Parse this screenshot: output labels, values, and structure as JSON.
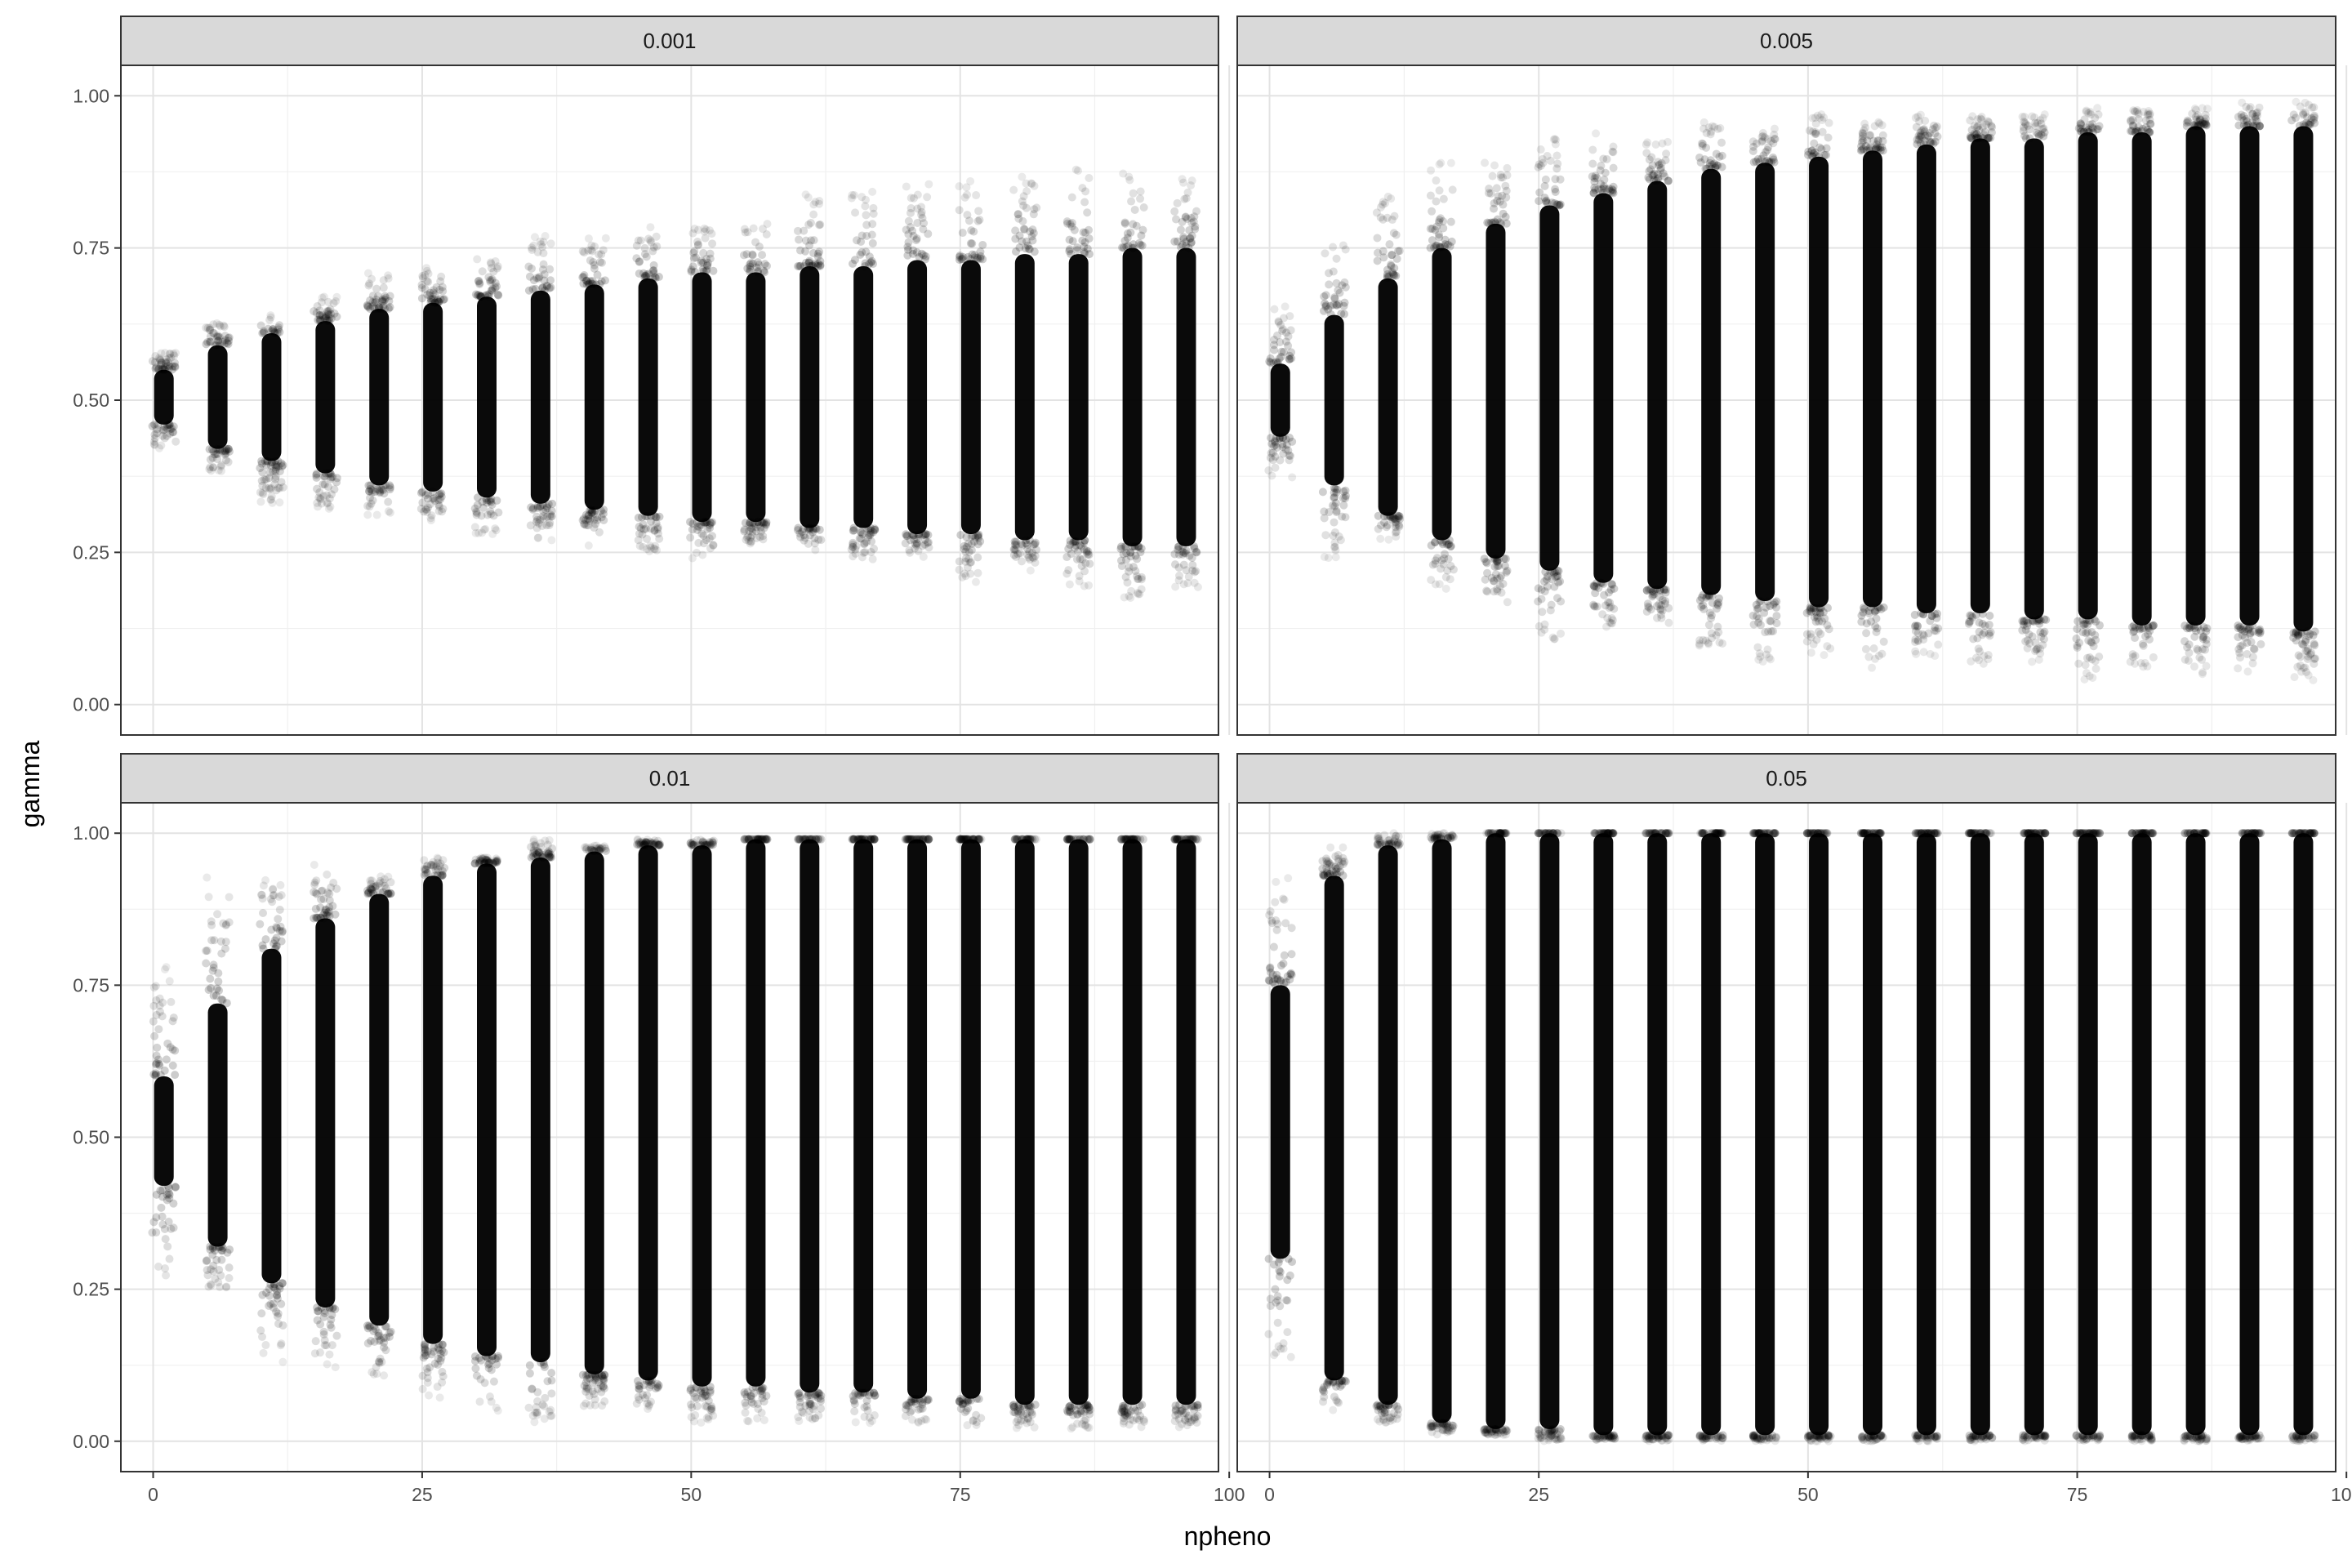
{
  "chart_data": {
    "type": "scatter",
    "facet_variable_label": "",
    "xlabel": "npheno",
    "ylabel": "gamma",
    "xlim": [
      -3,
      99
    ],
    "ylim": [
      -0.05,
      1.05
    ],
    "x_ticks": [
      "0",
      "25",
      "50",
      "75",
      "100"
    ],
    "y_ticks": [
      "0.00",
      "0.25",
      "0.50",
      "0.75",
      "1.00"
    ],
    "x_groups": [
      1,
      6,
      11,
      16,
      21,
      26,
      31,
      36,
      41,
      46,
      51,
      56,
      61,
      66,
      71,
      76,
      81,
      86,
      91,
      96
    ],
    "grid": true,
    "legend": "none",
    "point_color": "#000000",
    "point_alpha": 0.08,
    "facets": [
      {
        "label": "0.001",
        "core_low": [
          0.46,
          0.42,
          0.4,
          0.38,
          0.36,
          0.35,
          0.34,
          0.33,
          0.32,
          0.31,
          0.3,
          0.3,
          0.29,
          0.29,
          0.28,
          0.28,
          0.27,
          0.27,
          0.26,
          0.26
        ],
        "core_high": [
          0.55,
          0.59,
          0.61,
          0.63,
          0.65,
          0.66,
          0.67,
          0.68,
          0.69,
          0.7,
          0.71,
          0.71,
          0.72,
          0.72,
          0.73,
          0.73,
          0.74,
          0.74,
          0.75,
          0.75
        ],
        "min": [
          0.42,
          0.38,
          0.33,
          0.32,
          0.31,
          0.3,
          0.28,
          0.27,
          0.26,
          0.25,
          0.24,
          0.26,
          0.25,
          0.23,
          0.24,
          0.2,
          0.22,
          0.19,
          0.17,
          0.19
        ],
        "max": [
          0.58,
          0.63,
          0.64,
          0.67,
          0.71,
          0.72,
          0.74,
          0.77,
          0.77,
          0.79,
          0.79,
          0.8,
          0.84,
          0.85,
          0.86,
          0.86,
          0.87,
          0.89,
          0.88,
          0.87
        ]
      },
      {
        "label": "0.005",
        "core_low": [
          0.44,
          0.36,
          0.31,
          0.27,
          0.24,
          0.22,
          0.2,
          0.19,
          0.18,
          0.17,
          0.16,
          0.16,
          0.15,
          0.15,
          0.14,
          0.14,
          0.13,
          0.13,
          0.13,
          0.12
        ],
        "core_high": [
          0.56,
          0.64,
          0.7,
          0.75,
          0.79,
          0.82,
          0.84,
          0.86,
          0.88,
          0.89,
          0.9,
          0.91,
          0.92,
          0.93,
          0.93,
          0.94,
          0.94,
          0.95,
          0.95,
          0.95
        ],
        "min": [
          0.37,
          0.24,
          0.27,
          0.19,
          0.15,
          0.1,
          0.12,
          0.12,
          0.08,
          0.07,
          0.08,
          0.06,
          0.08,
          0.06,
          0.07,
          0.04,
          0.06,
          0.05,
          0.05,
          0.04
        ],
        "max": [
          0.66,
          0.78,
          0.85,
          0.89,
          0.9,
          0.93,
          0.94,
          0.93,
          0.96,
          0.95,
          0.97,
          0.96,
          0.97,
          0.97,
          0.97,
          0.98,
          0.98,
          0.98,
          0.99,
          0.99
        ]
      },
      {
        "label": "0.01",
        "core_low": [
          0.42,
          0.32,
          0.26,
          0.22,
          0.19,
          0.16,
          0.14,
          0.13,
          0.11,
          0.1,
          0.09,
          0.09,
          0.08,
          0.08,
          0.07,
          0.07,
          0.06,
          0.06,
          0.06,
          0.06
        ],
        "core_high": [
          0.6,
          0.72,
          0.81,
          0.86,
          0.9,
          0.93,
          0.95,
          0.96,
          0.97,
          0.98,
          0.98,
          0.99,
          0.99,
          0.99,
          0.99,
          0.99,
          0.99,
          0.99,
          0.99,
          0.99
        ],
        "min": [
          0.24,
          0.24,
          0.13,
          0.12,
          0.1,
          0.07,
          0.05,
          0.03,
          0.05,
          0.05,
          0.03,
          0.03,
          0.03,
          0.03,
          0.03,
          0.02,
          0.02,
          0.02,
          0.02,
          0.02
        ],
        "max": [
          0.78,
          0.93,
          0.93,
          0.95,
          0.93,
          0.96,
          0.96,
          0.99,
          0.98,
          0.99,
          0.99,
          0.99,
          0.99,
          0.99,
          0.99,
          0.99,
          0.99,
          0.99,
          0.99,
          0.99
        ]
      },
      {
        "label": "0.05",
        "core_low": [
          0.3,
          0.1,
          0.06,
          0.03,
          0.02,
          0.02,
          0.01,
          0.01,
          0.01,
          0.01,
          0.01,
          0.01,
          0.01,
          0.01,
          0.01,
          0.01,
          0.01,
          0.01,
          0.01,
          0.01
        ],
        "core_high": [
          0.75,
          0.93,
          0.98,
          0.99,
          1.0,
          1.0,
          1.0,
          1.0,
          1.0,
          1.0,
          1.0,
          1.0,
          1.0,
          1.0,
          1.0,
          1.0,
          1.0,
          1.0,
          1.0,
          1.0
        ],
        "min": [
          0.12,
          0.05,
          0.03,
          0.01,
          0.01,
          0.0,
          0.0,
          0.0,
          0.0,
          0.0,
          0.0,
          0.0,
          0.0,
          0.0,
          0.0,
          0.0,
          0.0,
          0.0,
          0.0,
          0.0
        ],
        "max": [
          0.93,
          0.98,
          1.0,
          1.0,
          1.0,
          1.0,
          1.0,
          1.0,
          1.0,
          1.0,
          1.0,
          1.0,
          1.0,
          1.0,
          1.0,
          1.0,
          1.0,
          1.0,
          1.0,
          1.0
        ]
      }
    ]
  }
}
